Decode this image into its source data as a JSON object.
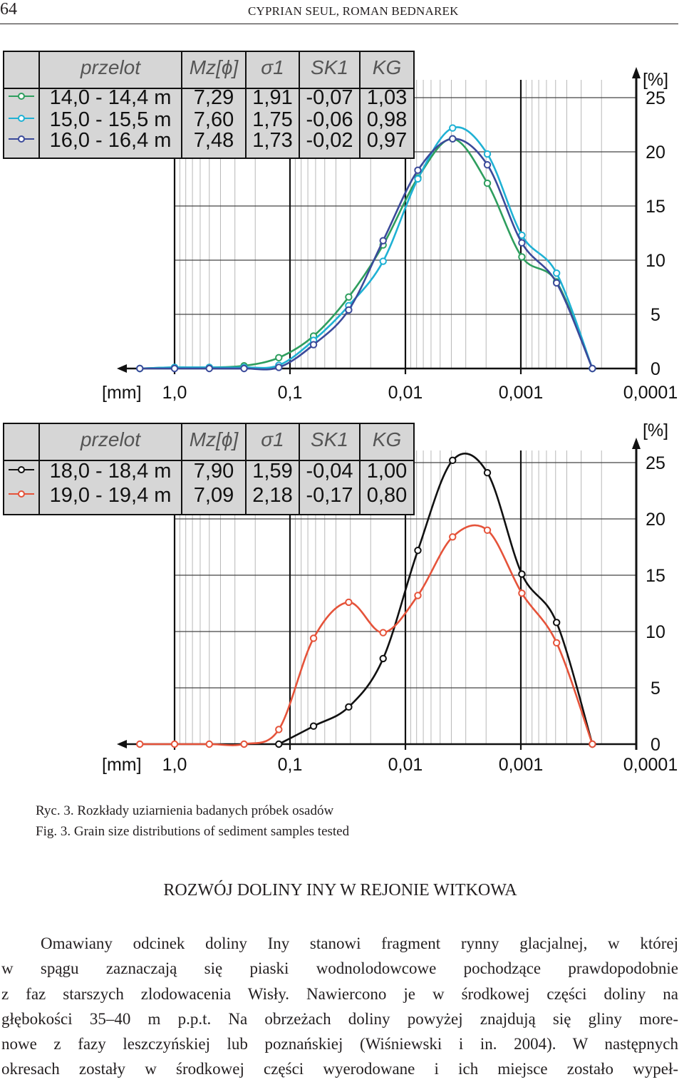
{
  "header": {
    "page_number": "64",
    "running_head": "CYPRIAN SEUL, ROMAN BEDNAREK"
  },
  "colors": {
    "green": "#2e9e5e",
    "cyan": "#1fb1d4",
    "blue": "#3b4a9a",
    "black": "#111111",
    "red": "#e5533a",
    "grid": "#1a1a1a",
    "table_bg": "#d6d6d6"
  },
  "chart_data": [
    {
      "type": "line",
      "x_scale": "log",
      "xlim": [
        1.0,
        0.0001
      ],
      "ylim": [
        0,
        27
      ],
      "xlabel": "[mm]",
      "ylabel": "[%]",
      "x_tick_labels": [
        "1,0",
        "0,1",
        "0,01",
        "0,001",
        "0,0001"
      ],
      "y_tick_labels": [
        "0",
        "5",
        "10",
        "15",
        "20",
        "25"
      ],
      "table": {
        "headers": [
          "przelot",
          "Mz[ϕ]",
          "σ1",
          "SK1",
          "KG"
        ],
        "rows": [
          [
            "14,0 - 14,4 m",
            "7,29",
            "1,91",
            "-0,07",
            "1,03"
          ],
          [
            "15,0 - 15,5 m",
            "7,60",
            "1,75",
            "-0,06",
            "0,98"
          ],
          [
            "16,0 - 16,4 m",
            "7,48",
            "1,73",
            "-0,02",
            "0,97"
          ]
        ]
      },
      "series": [
        {
          "name": "14,0 - 14,4 m",
          "color": "#2e9e5e",
          "points": [
            [
              2,
              0
            ],
            [
              1,
              0.1
            ],
            [
              0.5,
              0.1
            ],
            [
              0.25,
              0.25
            ],
            [
              0.125,
              1.0
            ],
            [
              0.0625,
              3.0
            ],
            [
              0.031,
              6.6
            ],
            [
              0.0156,
              11.4
            ],
            [
              0.0078,
              17.6
            ],
            [
              0.0039,
              21.2
            ],
            [
              0.00195,
              17.1
            ],
            [
              0.00098,
              10.3
            ],
            [
              0.00049,
              8.0
            ],
            [
              0.00024,
              0
            ]
          ]
        },
        {
          "name": "15,0 - 15,5 m",
          "color": "#1fb1d4",
          "points": [
            [
              2,
              0
            ],
            [
              1,
              0.1
            ],
            [
              0.5,
              0.1
            ],
            [
              0.25,
              0.1
            ],
            [
              0.125,
              0.3
            ],
            [
              0.0625,
              2.6
            ],
            [
              0.031,
              5.8
            ],
            [
              0.0156,
              9.9
            ],
            [
              0.0078,
              17.5
            ],
            [
              0.0039,
              22.2
            ],
            [
              0.00195,
              19.8
            ],
            [
              0.00098,
              12.3
            ],
            [
              0.00049,
              8.8
            ],
            [
              0.00024,
              0
            ]
          ]
        },
        {
          "name": "16,0 - 16,4 m",
          "color": "#3b4a9a",
          "points": [
            [
              2,
              0
            ],
            [
              1,
              0
            ],
            [
              0.5,
              0
            ],
            [
              0.25,
              0
            ],
            [
              0.125,
              0.1
            ],
            [
              0.0625,
              2.2
            ],
            [
              0.031,
              5.4
            ],
            [
              0.0156,
              11.8
            ],
            [
              0.0078,
              18.3
            ],
            [
              0.0039,
              21.2
            ],
            [
              0.00195,
              18.8
            ],
            [
              0.00098,
              11.6
            ],
            [
              0.00049,
              7.9
            ],
            [
              0.00024,
              0
            ]
          ]
        }
      ]
    },
    {
      "type": "line",
      "x_scale": "log",
      "xlim": [
        1.0,
        0.0001
      ],
      "ylim": [
        0,
        27
      ],
      "xlabel": "[mm]",
      "ylabel": "[%]",
      "x_tick_labels": [
        "1,0",
        "0,1",
        "0,01",
        "0,001",
        "0,0001"
      ],
      "y_tick_labels": [
        "0",
        "5",
        "10",
        "15",
        "20",
        "25"
      ],
      "table": {
        "headers": [
          "przelot",
          "Mz[ϕ]",
          "σ1",
          "SK1",
          "KG"
        ],
        "rows": [
          [
            "18,0 - 18,4 m",
            "7,90",
            "1,59",
            "-0,04",
            "1,00"
          ],
          [
            "19,0 - 19,4 m",
            "7,09",
            "2,18",
            "-0,17",
            "0,80"
          ]
        ]
      },
      "series": [
        {
          "name": "18,0 - 18,4 m",
          "color": "#111111",
          "points": [
            [
              0.125,
              0
            ],
            [
              0.0625,
              1.6
            ],
            [
              0.031,
              3.3
            ],
            [
              0.0156,
              7.6
            ],
            [
              0.0078,
              17.2
            ],
            [
              0.0039,
              25.2
            ],
            [
              0.00195,
              24.1
            ],
            [
              0.00098,
              15.1
            ],
            [
              0.00049,
              10.8
            ],
            [
              0.00024,
              0
            ]
          ]
        },
        {
          "name": "19,0 - 19,4 m",
          "color": "#e5533a",
          "points": [
            [
              2,
              0
            ],
            [
              1,
              0
            ],
            [
              0.5,
              0
            ],
            [
              0.25,
              0
            ],
            [
              0.125,
              1.3
            ],
            [
              0.0625,
              9.4
            ],
            [
              0.031,
              12.6
            ],
            [
              0.0156,
              9.9
            ],
            [
              0.0078,
              13.2
            ],
            [
              0.0039,
              18.4
            ],
            [
              0.00195,
              19.0
            ],
            [
              0.00098,
              13.4
            ],
            [
              0.00049,
              9.0
            ],
            [
              0.00024,
              0
            ]
          ]
        }
      ]
    }
  ],
  "caption": {
    "pl": "Ryc. 3. Rozkłady uziarnienia badanych próbek osadów",
    "en": "Fig. 3. Grain size distributions of sediment samples tested"
  },
  "section_title": "ROZWÓJ DOLINY INY W REJONIE WITKOWA",
  "body_lines": [
    "Omawiany odcinek doliny Iny stanowi fragment rynny glacjalnej, w której",
    "w spągu zaznaczają się piaski wodnolodowcowe pochodzące prawdopodobnie",
    "z faz starszych zlodowacenia Wisły. Nawiercono je w środkowej części doliny na",
    "głębokości 35–40 m p.p.t. Na obrzeżach doliny powyżej znajdują się gliny more-",
    "nowe z fazy leszczyńskiej lub poznańskiej (Wiśniewski i in. 2004). W następnych",
    "okresach zostały w środkowej części wyerodowane i ich miejsce zostało wypeł-"
  ]
}
